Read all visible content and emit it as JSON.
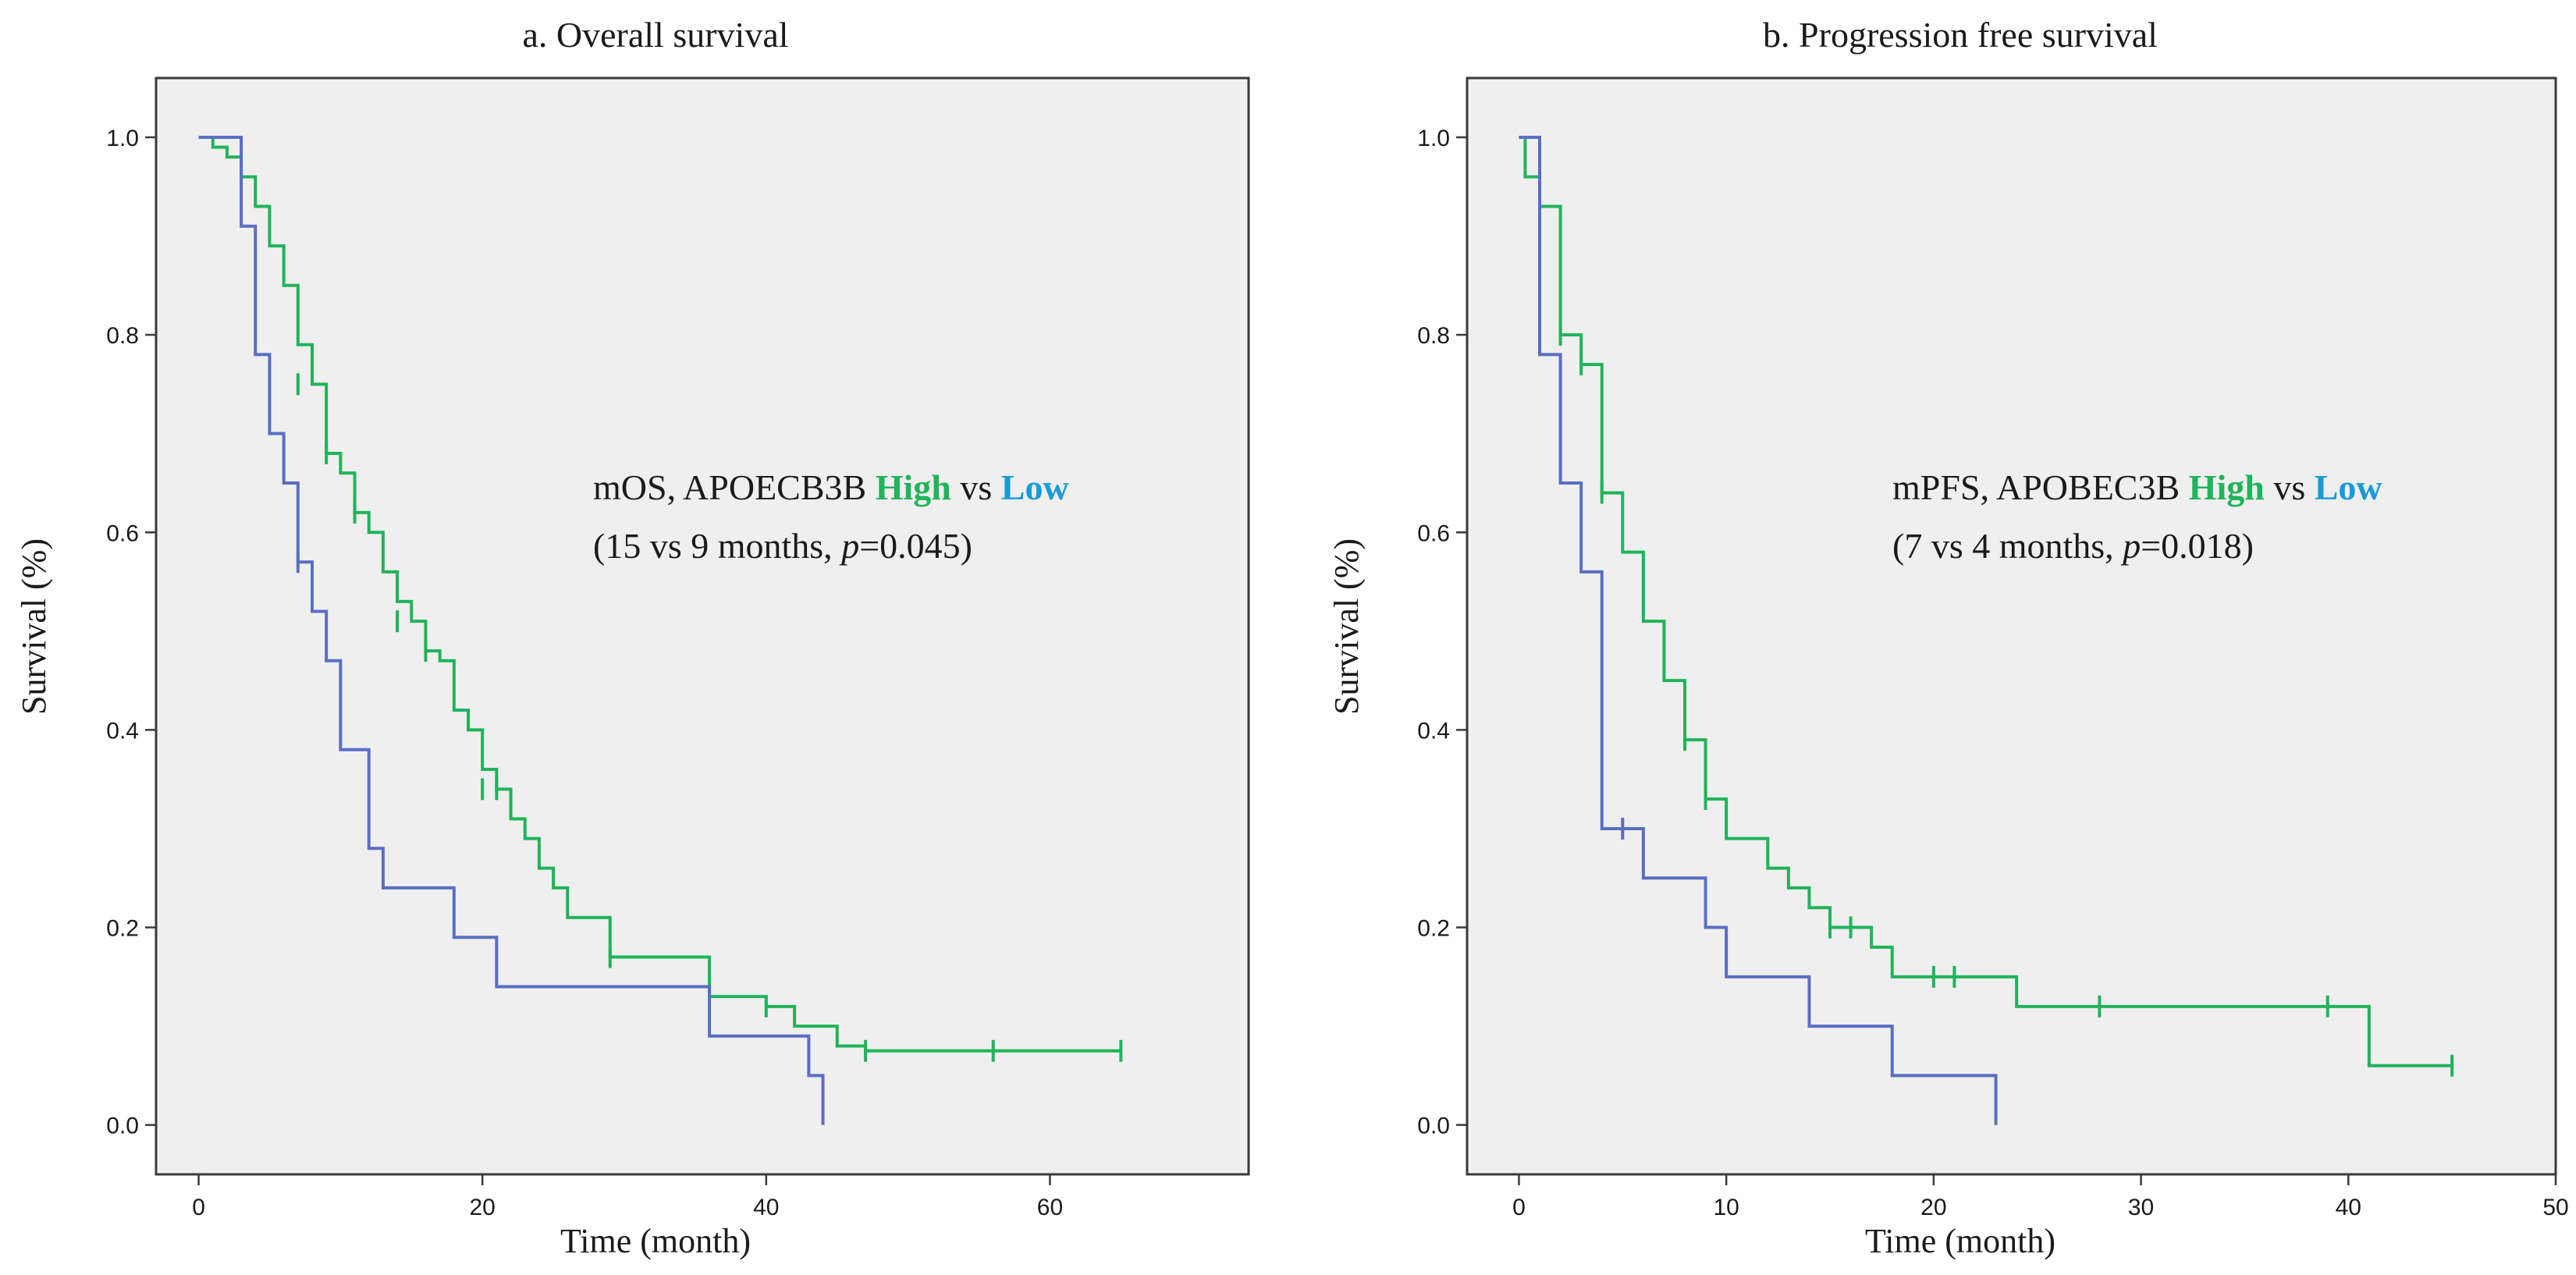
{
  "colors": {
    "high": "#21b35a",
    "low": "#5a6ec4",
    "low_text": "#1a9bd7"
  },
  "chart_data": [
    {
      "type": "line",
      "title": "a. Overall survival",
      "xlabel": "Time (month)",
      "ylabel": "Survival (%)",
      "xlim": [
        -3,
        74
      ],
      "ylim": [
        -0.05,
        1.06
      ],
      "xticks": [
        0,
        20,
        40,
        60
      ],
      "xtick_labels": [
        "0",
        "20",
        "40",
        "60"
      ],
      "yticks": [
        0.0,
        0.2,
        0.4,
        0.6,
        0.8,
        1.0
      ],
      "ytick_labels": [
        "0.0",
        "0.2",
        "0.4",
        "0.6",
        "0.8",
        "1.0"
      ],
      "annotation": {
        "line1_prefix": "mOS, APOECB3B ",
        "high_label": "High",
        "vs_label": " vs ",
        "low_label": "Low",
        "line2_prefix": "(15 vs 9 months, ",
        "p_label": "p",
        "line2_suffix": "=0.045)"
      },
      "series": [
        {
          "name": "High",
          "step_x": [
            0,
            1,
            2,
            3,
            4,
            5,
            6,
            7,
            8,
            9,
            10,
            11,
            12,
            13,
            14,
            15,
            16,
            17,
            18,
            19,
            20,
            21,
            22,
            23,
            24,
            25,
            26,
            29,
            36,
            40,
            42,
            45,
            47,
            65
          ],
          "step_y": [
            1.0,
            0.99,
            0.98,
            0.96,
            0.93,
            0.89,
            0.85,
            0.79,
            0.75,
            0.68,
            0.66,
            0.62,
            0.6,
            0.56,
            0.53,
            0.51,
            0.48,
            0.47,
            0.42,
            0.4,
            0.36,
            0.34,
            0.31,
            0.29,
            0.26,
            0.24,
            0.21,
            0.17,
            0.13,
            0.12,
            0.1,
            0.08,
            0.075,
            0.075
          ],
          "censor_x": [
            7,
            9,
            11,
            14,
            16,
            20,
            21,
            29,
            40,
            47,
            56,
            65
          ],
          "censor_y": [
            0.75,
            0.68,
            0.62,
            0.51,
            0.48,
            0.34,
            0.34,
            0.17,
            0.12,
            0.075,
            0.075,
            0.075
          ]
        },
        {
          "name": "Low",
          "step_x": [
            0,
            3,
            4,
            5,
            6,
            7,
            8,
            9,
            10,
            11,
            12,
            13,
            18,
            21,
            36,
            43,
            44
          ],
          "step_y": [
            1.0,
            0.91,
            0.78,
            0.7,
            0.65,
            0.57,
            0.52,
            0.47,
            0.38,
            0.38,
            0.28,
            0.24,
            0.19,
            0.14,
            0.09,
            0.05,
            0.0
          ],
          "censor_x": [
            7
          ],
          "censor_y": [
            0.57
          ]
        }
      ]
    },
    {
      "type": "line",
      "title": "b. Progression free survival",
      "xlabel": "Time (month)",
      "ylabel": "Survival (%)",
      "xlim": [
        -2.5,
        50
      ],
      "ylim": [
        -0.05,
        1.06
      ],
      "xticks": [
        0,
        10,
        20,
        30,
        40,
        50
      ],
      "xtick_labels": [
        "0",
        "10",
        "20",
        "30",
        "40",
        "50"
      ],
      "yticks": [
        0.0,
        0.2,
        0.4,
        0.6,
        0.8,
        1.0
      ],
      "ytick_labels": [
        "0.0",
        "0.2",
        "0.4",
        "0.6",
        "0.8",
        "1.0"
      ],
      "annotation": {
        "line1_prefix": "mPFS, APOBEC3B ",
        "high_label": "High",
        "vs_label": " vs ",
        "low_label": "Low",
        "line2_prefix": "(7 vs 4 months, ",
        "p_label": "p",
        "line2_suffix": "=0.018)"
      },
      "series": [
        {
          "name": "High",
          "step_x": [
            0,
            0.3,
            1,
            2,
            3,
            4,
            5,
            6,
            7,
            8,
            9,
            10,
            12,
            13,
            14,
            15,
            17,
            18,
            24,
            41,
            45
          ],
          "step_y": [
            1.0,
            0.96,
            0.93,
            0.8,
            0.77,
            0.64,
            0.58,
            0.51,
            0.45,
            0.39,
            0.33,
            0.29,
            0.26,
            0.24,
            0.22,
            0.2,
            0.18,
            0.15,
            0.12,
            0.06,
            0.06
          ],
          "censor_x": [
            2,
            3,
            4,
            8,
            9,
            15,
            16,
            20,
            21,
            28,
            39,
            45
          ],
          "censor_y": [
            0.8,
            0.77,
            0.64,
            0.39,
            0.33,
            0.2,
            0.2,
            0.15,
            0.15,
            0.12,
            0.12,
            0.06
          ]
        },
        {
          "name": "Low",
          "step_x": [
            0,
            1,
            2,
            3,
            4,
            6,
            9,
            10,
            14,
            18,
            23
          ],
          "step_y": [
            1.0,
            0.78,
            0.65,
            0.56,
            0.3,
            0.25,
            0.2,
            0.15,
            0.1,
            0.05,
            0.0
          ],
          "censor_x": [
            5
          ],
          "censor_y": [
            0.3
          ]
        }
      ]
    }
  ]
}
